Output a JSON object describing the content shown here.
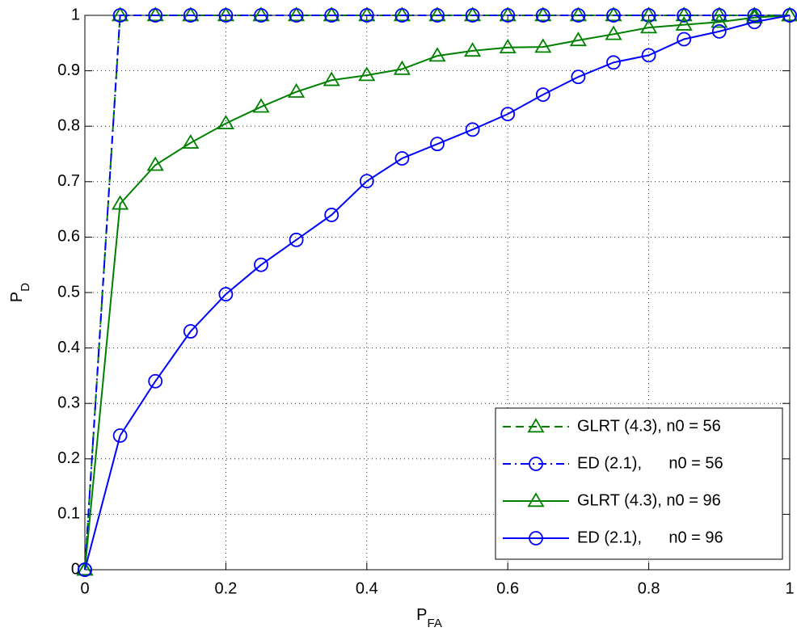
{
  "chart_data": {
    "type": "line",
    "x_label": {
      "text": "P",
      "subscript": "FA"
    },
    "y_label": {
      "text": "P",
      "subscript": "D"
    },
    "x": [
      0,
      0.05,
      0.1,
      0.15,
      0.2,
      0.25,
      0.3,
      0.35,
      0.4,
      0.45,
      0.5,
      0.55,
      0.6,
      0.65,
      0.7,
      0.75,
      0.8,
      0.85,
      0.9,
      0.95,
      1
    ],
    "series": [
      {
        "name": "GLRT (4.3), n0 = 56",
        "color": "#008000",
        "linestyle": "dashed",
        "marker": "triangle",
        "values": [
          0,
          1,
          1,
          1,
          1,
          1,
          1,
          1,
          1,
          1,
          1,
          1,
          1,
          1,
          1,
          1,
          1,
          1,
          1,
          1,
          1
        ]
      },
      {
        "name": "ED (2.1),      n0 = 56",
        "color": "#0000ff",
        "linestyle": "dashdot",
        "marker": "circle",
        "values": [
          0,
          1,
          1,
          1,
          1,
          1,
          1,
          1,
          1,
          1,
          1,
          1,
          1,
          1,
          1,
          1,
          1,
          1,
          1,
          1,
          1
        ]
      },
      {
        "name": "GLRT (4.3), n0 = 96",
        "color": "#008000",
        "linestyle": "solid",
        "marker": "triangle",
        "values": [
          0,
          0.66,
          0.73,
          0.77,
          0.805,
          0.835,
          0.862,
          0.883,
          0.892,
          0.903,
          0.927,
          0.936,
          0.942,
          0.943,
          0.955,
          0.966,
          0.978,
          0.983,
          0.988,
          0.996,
          1
        ]
      },
      {
        "name": "ED (2.1),      n0 = 96",
        "color": "#0000ff",
        "linestyle": "solid",
        "marker": "circle",
        "values": [
          0,
          0.242,
          0.34,
          0.43,
          0.497,
          0.55,
          0.595,
          0.64,
          0.701,
          0.742,
          0.768,
          0.794,
          0.822,
          0.857,
          0.889,
          0.915,
          0.928,
          0.957,
          0.971,
          0.988,
          1
        ]
      }
    ],
    "xlim": [
      0,
      1
    ],
    "ylim": [
      0,
      1
    ],
    "xticks": [
      0,
      0.2,
      0.4,
      0.6,
      0.8,
      1
    ],
    "yticks": [
      0,
      0.1,
      0.2,
      0.3,
      0.4,
      0.5,
      0.6,
      0.7,
      0.8,
      0.9,
      1
    ],
    "grid": true,
    "legend": "lower right"
  }
}
